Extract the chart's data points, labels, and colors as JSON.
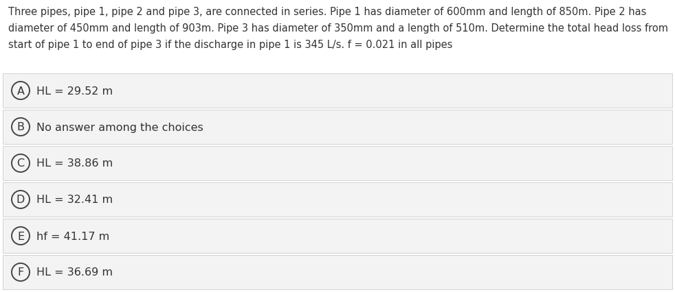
{
  "question_text": "Three pipes, pipe 1, pipe 2 and pipe 3, are connected in series. Pipe 1 has diameter of 600mm and length of 850m. Pipe 2 has\ndiameter of 450mm and length of 903m. Pipe 3 has diameter of 350mm and a length of 510m. Determine the total head loss from\nstart of pipe 1 to end of pipe 3 if the discharge in pipe 1 is 345 L/s. f = 0.021 in all pipes",
  "options": [
    {
      "label": "A",
      "text": "HL = 29.52 m"
    },
    {
      "label": "B",
      "text": "No answer among the choices"
    },
    {
      "label": "C",
      "text": "HL = 38.86 m"
    },
    {
      "label": "D",
      "text": "HL = 32.41 m"
    },
    {
      "label": "E",
      "text": "hf = 41.17 m"
    },
    {
      "label": "F",
      "text": "HL = 36.69 m"
    }
  ],
  "bg_color": "#ffffff",
  "option_bg_color": "#f3f3f3",
  "option_border_color": "#cccccc",
  "text_color": "#333333",
  "circle_edge_color": "#444444",
  "question_fontsize": 10.5,
  "option_fontsize": 11.5,
  "label_fontsize": 11.5,
  "fig_width": 9.82,
  "fig_height": 4.27,
  "dpi": 100
}
